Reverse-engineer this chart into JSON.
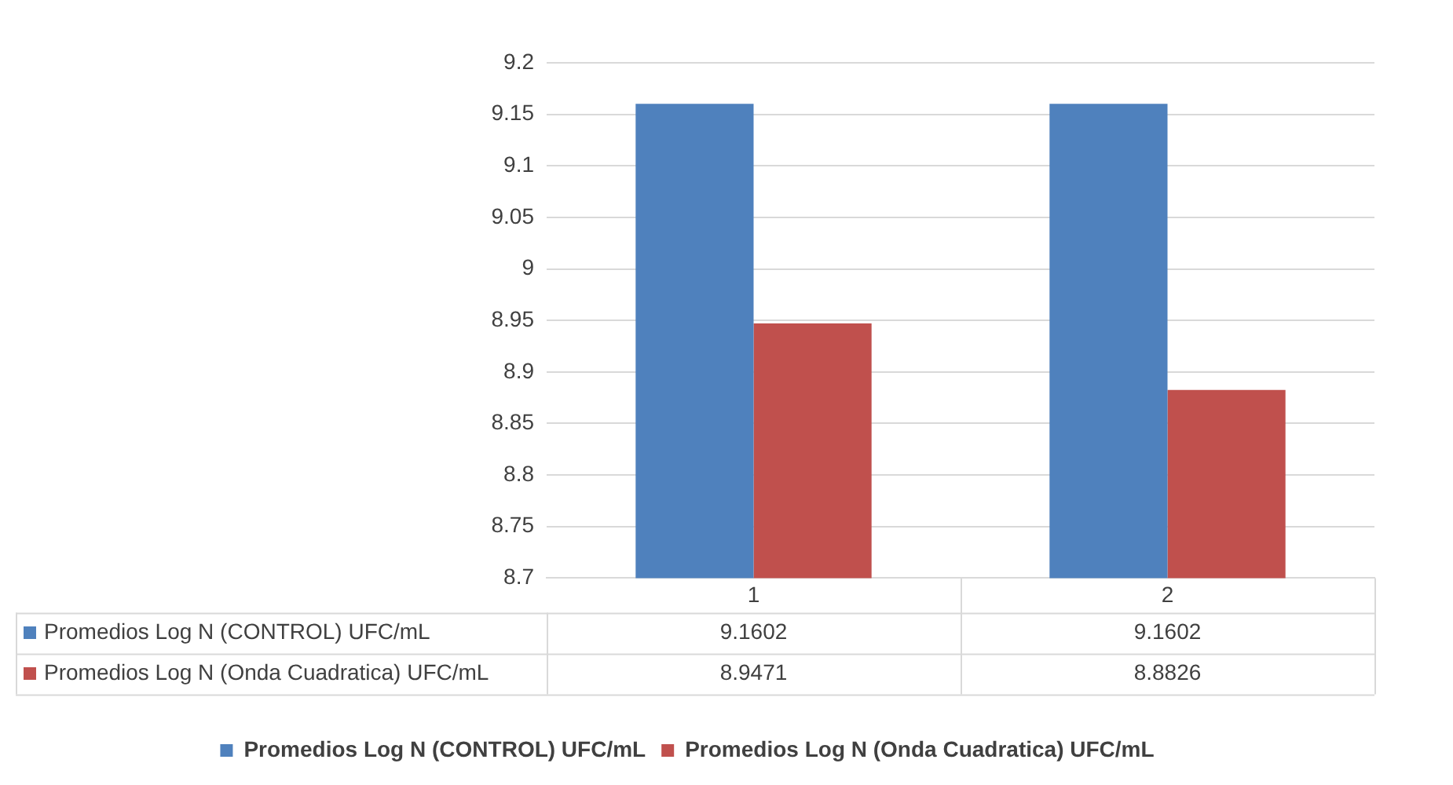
{
  "chart_data": {
    "type": "bar",
    "categories": [
      "1",
      "2"
    ],
    "series": [
      {
        "name": "Promedios Log N (CONTROL) UFC/mL",
        "color": "#4f81bd",
        "values": [
          9.1602,
          9.1602
        ]
      },
      {
        "name": "Promedios Log N (Onda Cuadratica) UFC/mL",
        "color": "#c0504d",
        "values": [
          8.9471,
          8.8826
        ]
      }
    ],
    "ylim": [
      8.7,
      9.2
    ],
    "yticks": [
      8.7,
      8.75,
      8.8,
      8.85,
      8.9,
      8.95,
      9,
      9.05,
      9.1,
      9.15,
      9.2
    ],
    "grid": "y",
    "legend": "bottom",
    "data_labels": true
  }
}
